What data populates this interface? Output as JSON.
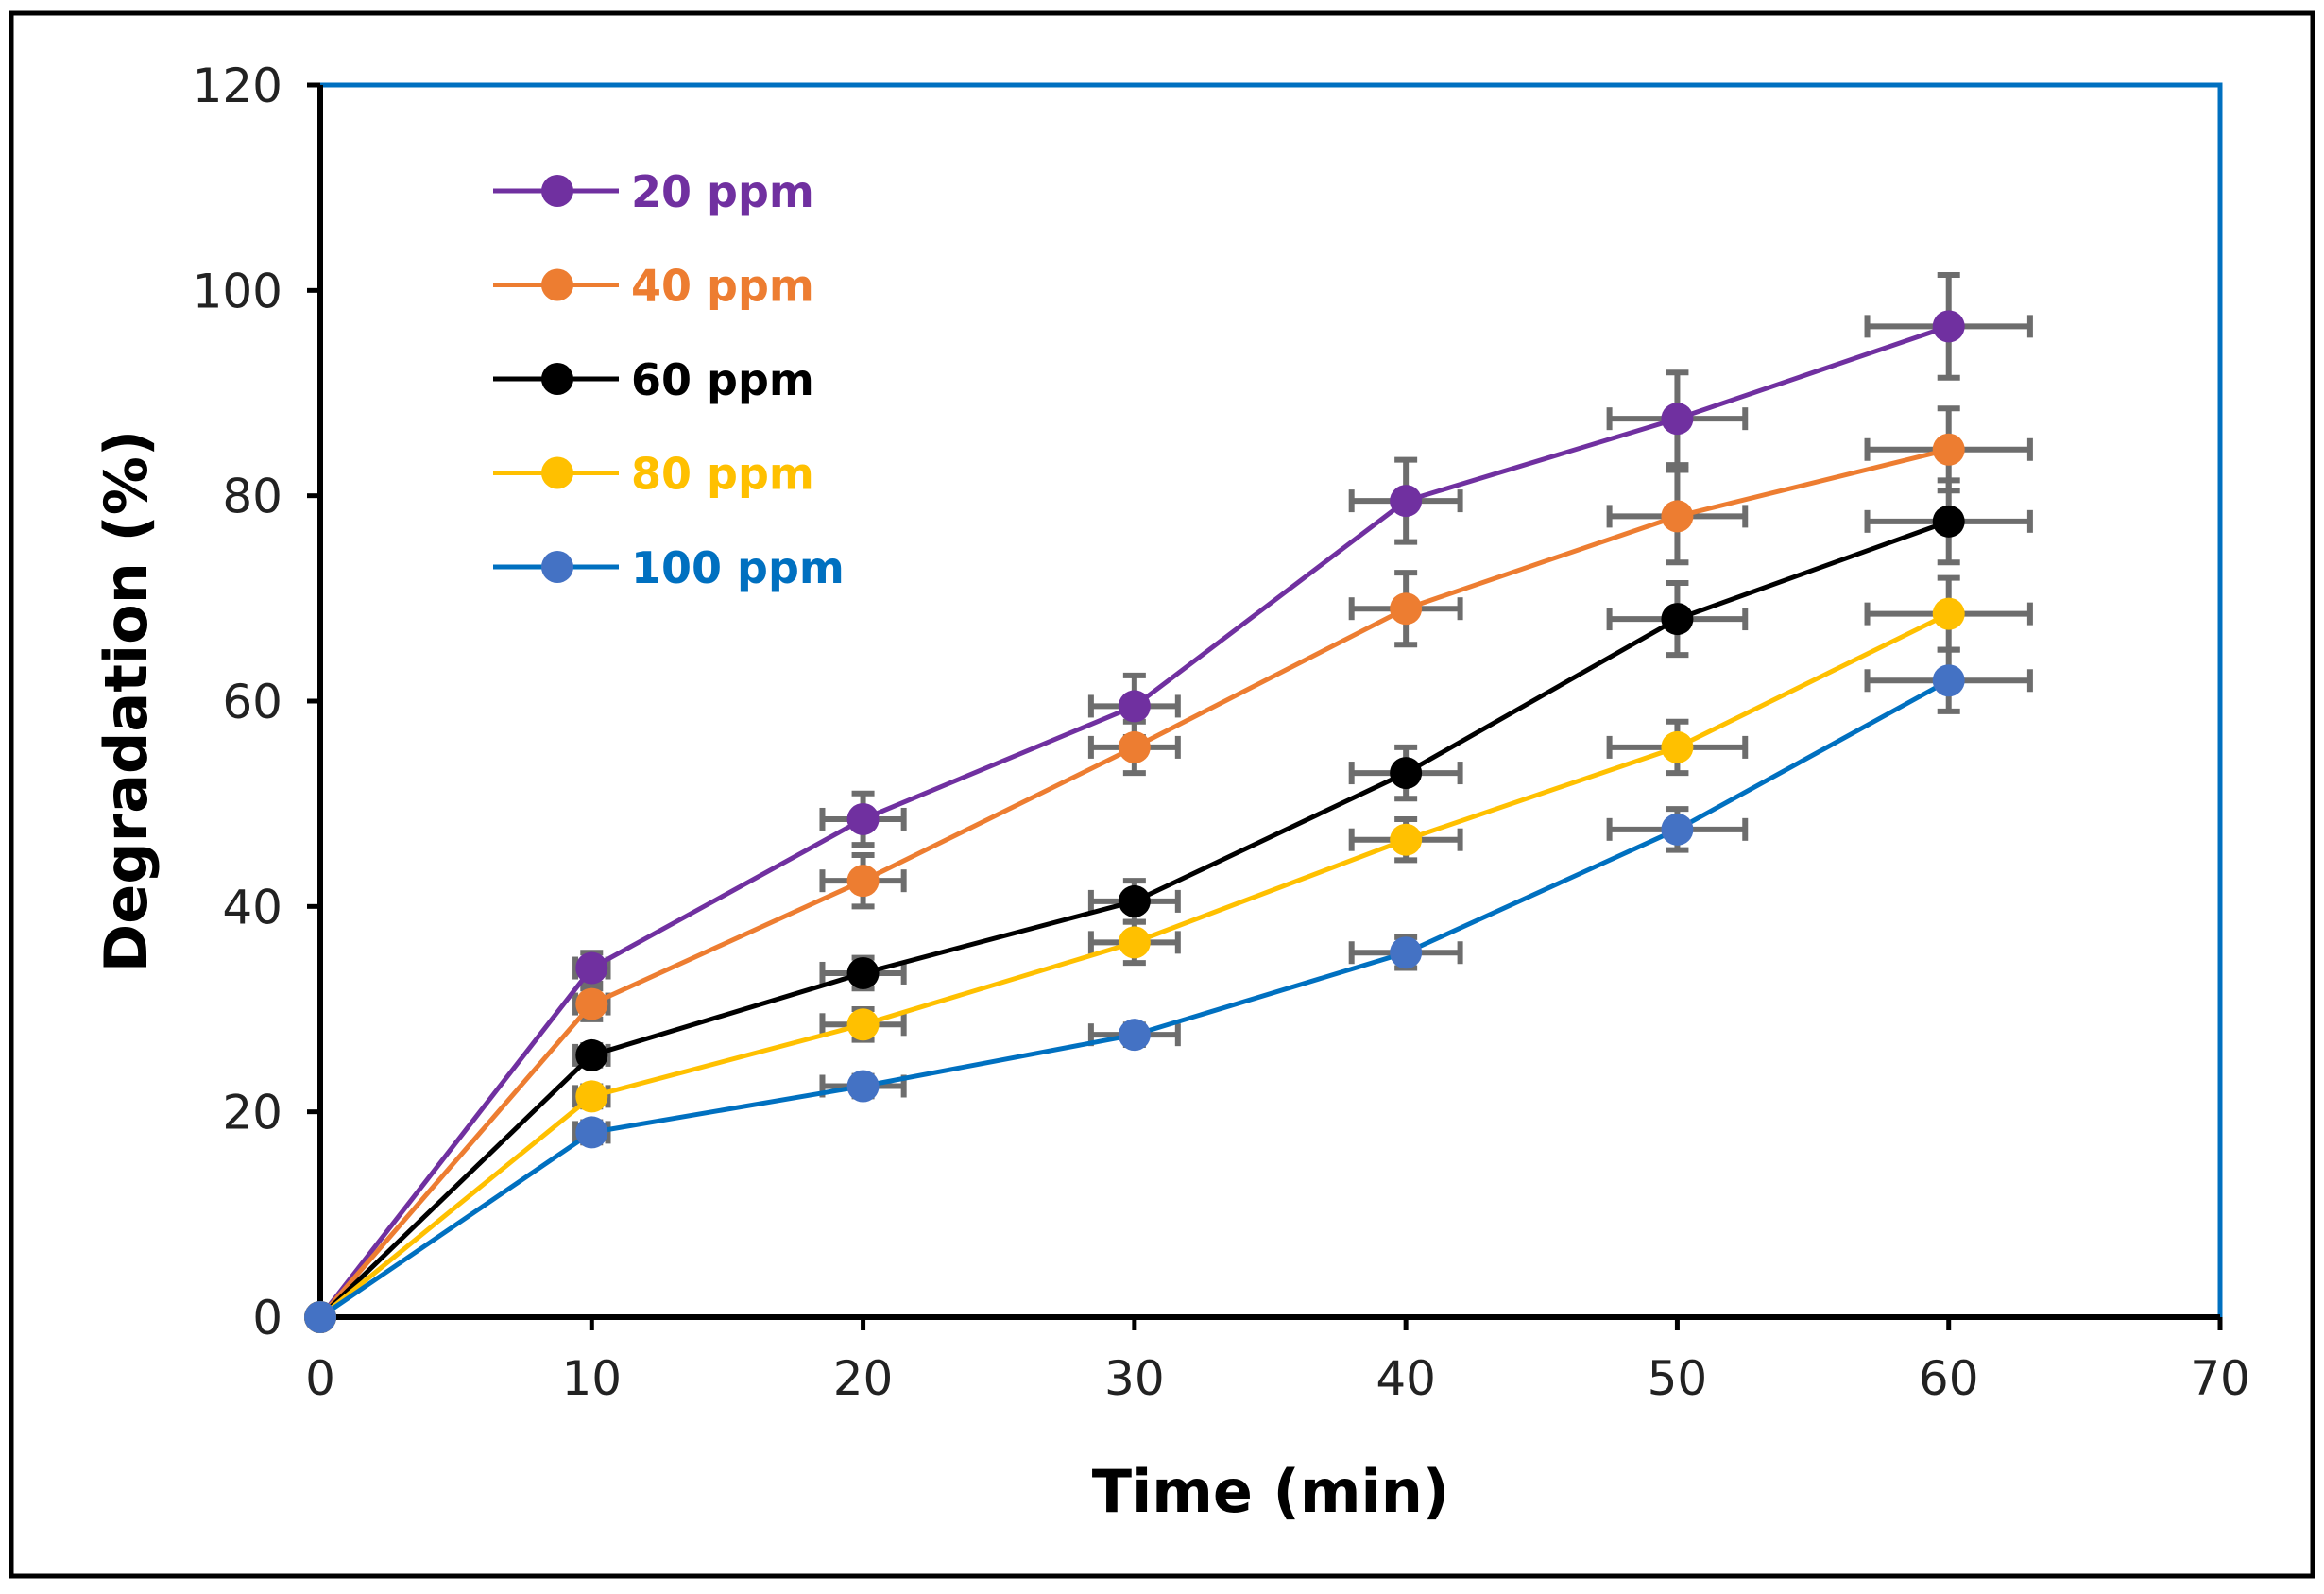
{
  "chart_data": {
    "type": "line",
    "title": "",
    "xlabel": "Time (min)",
    "ylabel": "Degradation (%)",
    "xlim": [
      0,
      70
    ],
    "ylim": [
      0,
      120
    ],
    "xticks": [
      0,
      10,
      20,
      30,
      40,
      50,
      60,
      70
    ],
    "yticks": [
      0,
      20,
      40,
      60,
      80,
      100,
      120
    ],
    "grid": false,
    "legend_position": "top-left",
    "x": [
      0,
      10,
      20,
      30,
      40,
      50,
      60
    ],
    "x_error": [
      0,
      0.6,
      1.5,
      1.6,
      2.0,
      2.5,
      3.0
    ],
    "series": [
      {
        "name": "20 ppm",
        "color": "#7030A0",
        "values": [
          0,
          34,
          48.5,
          59.5,
          79.5,
          87.5,
          96.5
        ],
        "y_error": [
          0,
          1.5,
          2.5,
          3,
          4,
          4.5,
          5
        ]
      },
      {
        "name": "40 ppm",
        "color": "#ED7D31",
        "values": [
          0,
          30.5,
          42.5,
          55.5,
          69,
          78,
          84.5
        ],
        "y_error": [
          0,
          1.5,
          2.5,
          2.5,
          3.5,
          4.5,
          4
        ]
      },
      {
        "name": "60 ppm",
        "color": "#000000",
        "values": [
          0,
          25.5,
          33.5,
          40.5,
          53,
          68,
          77.5
        ],
        "y_error": [
          0,
          1,
          1.5,
          2,
          2.5,
          3.5,
          4
        ]
      },
      {
        "name": "80 ppm",
        "color": "#FFC000",
        "values": [
          0,
          21.5,
          28.5,
          36.5,
          46.5,
          55.5,
          68.5
        ],
        "y_error": [
          0,
          1,
          1.5,
          2,
          2,
          2.5,
          3.5
        ]
      },
      {
        "name": "100 ppm",
        "color": "#4472C4",
        "line_color": "#0070C0",
        "values": [
          0,
          18,
          22.5,
          27.5,
          35.5,
          47.5,
          62
        ],
        "y_error": [
          0,
          1,
          1,
          1,
          1.5,
          2,
          3
        ]
      }
    ]
  }
}
